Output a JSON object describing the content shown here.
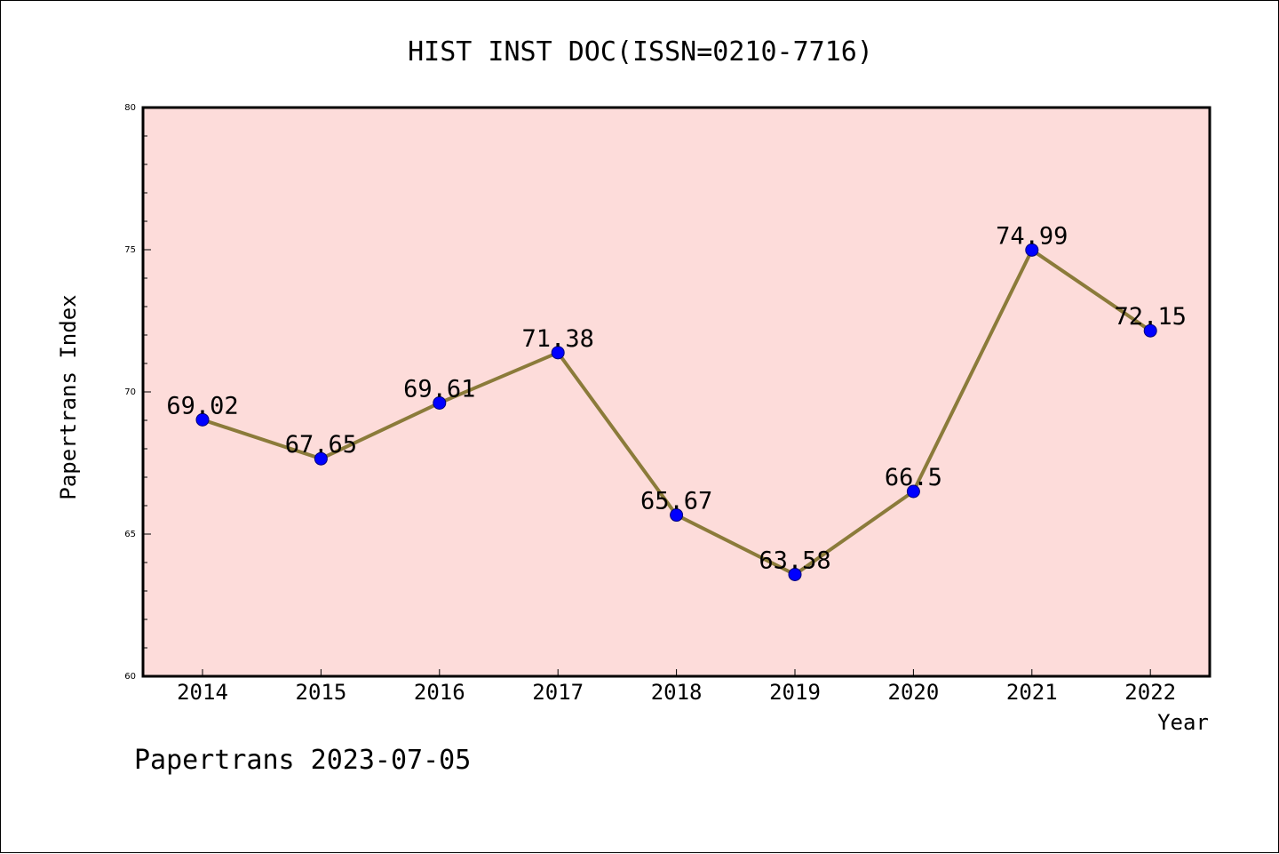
{
  "chart_data": {
    "type": "line",
    "title": "HIST INST DOC(ISSN=0210-7716)",
    "xlabel": "Year",
    "ylabel": "Papertrans Index",
    "categories": [
      "2014",
      "2015",
      "2016",
      "2017",
      "2018",
      "2019",
      "2020",
      "2021",
      "2022"
    ],
    "values": [
      69.02,
      67.65,
      69.61,
      71.38,
      65.67,
      63.58,
      66.5,
      74.99,
      72.15
    ],
    "data_labels": [
      "69.02",
      "67.65",
      "69.61",
      "71.38",
      "65.67",
      "63.58",
      "66.5",
      "74.99",
      "72.15"
    ],
    "ylim": [
      60,
      80
    ],
    "yticks": [
      60,
      65,
      70,
      75,
      80
    ],
    "ytick_labels": [
      "60",
      "65",
      "70",
      "75",
      "80"
    ],
    "grid": false,
    "legend": "none",
    "colors": {
      "plot_background": "#fddcda",
      "line": "#8b7b3a",
      "marker": "#0000ff",
      "marker_edge": "#00007a"
    }
  },
  "footer": {
    "text": "Papertrans 2023-07-05"
  }
}
